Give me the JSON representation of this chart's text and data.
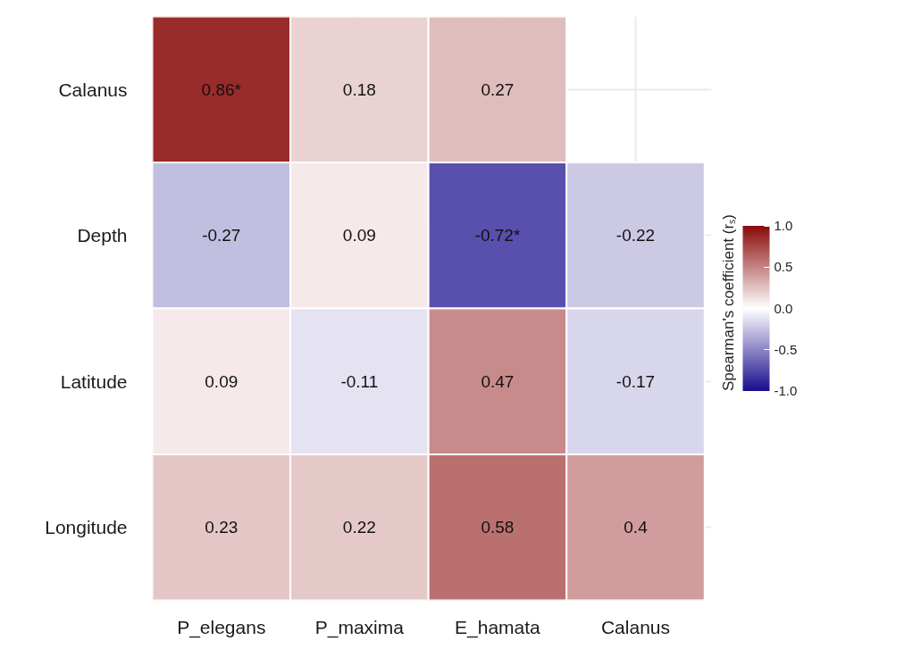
{
  "chart_data": {
    "type": "heatmap",
    "categories": [
      "P_elegans",
      "P_maxima",
      "E_hamata",
      "Calanus"
    ],
    "y_categories": [
      "Calanus",
      "Depth",
      "Latitude",
      "Longitude"
    ],
    "cells": [
      [
        0.86,
        0.18,
        0.27,
        null
      ],
      [
        -0.27,
        0.09,
        -0.72,
        -0.22
      ],
      [
        0.09,
        -0.11,
        0.47,
        -0.17
      ],
      [
        0.23,
        0.22,
        0.58,
        0.4
      ]
    ],
    "clabel": "Spearman's coefficient (rₛ)",
    "clim": [
      -1,
      1
    ],
    "cticks": [
      {
        "value": -1,
        "label": "-1.0"
      },
      {
        "value": -0.5,
        "label": "-0.5"
      },
      {
        "value": 0,
        "label": "0.0"
      },
      {
        "value": 0.5,
        "label": "0.5"
      },
      {
        "value": 1,
        "label": "1.0"
      }
    ],
    "cell_labels": [
      [
        "0.86*",
        "0.18",
        "0.27",
        null
      ],
      [
        "-0.27",
        "0.09",
        "-0.72*",
        "-0.22"
      ],
      [
        "0.09",
        "-0.11",
        "0.47",
        "-0.17"
      ],
      [
        "0.23",
        "0.22",
        "0.58",
        "0.4"
      ]
    ],
    "grid": true
  }
}
